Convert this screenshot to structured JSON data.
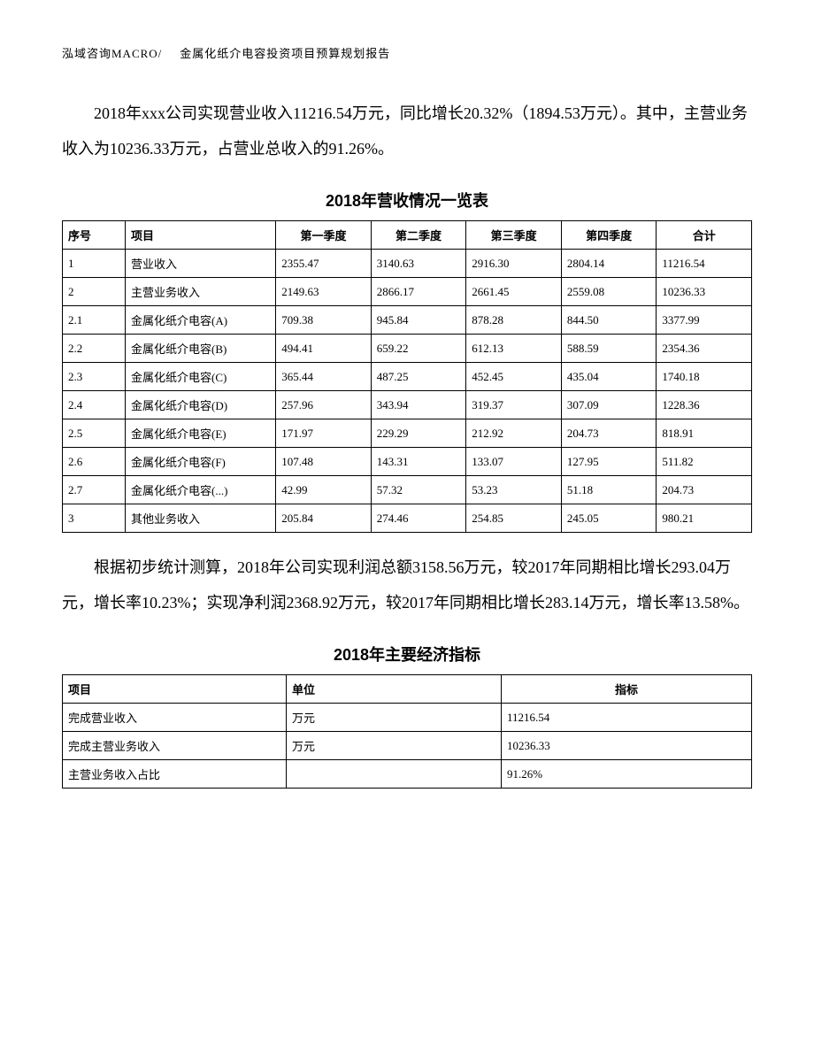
{
  "header": {
    "company": "泓域咨询MACRO/",
    "doc_title": "金属化纸介电容投资项目预算规划报告"
  },
  "paragraph1": "2018年xxx公司实现营业收入11216.54万元，同比增长20.32%（1894.53万元）。其中，主营业务收入为10236.33万元，占营业总收入的91.26%。",
  "table1": {
    "title": "2018年营收情况一览表",
    "columns": [
      "序号",
      "项目",
      "第一季度",
      "第二季度",
      "第三季度",
      "第四季度",
      "合计"
    ],
    "rows": [
      [
        "1",
        "营业收入",
        "2355.47",
        "3140.63",
        "2916.30",
        "2804.14",
        "11216.54"
      ],
      [
        "2",
        "主营业务收入",
        "2149.63",
        "2866.17",
        "2661.45",
        "2559.08",
        "10236.33"
      ],
      [
        "2.1",
        "金属化纸介电容(A)",
        "709.38",
        "945.84",
        "878.28",
        "844.50",
        "3377.99"
      ],
      [
        "2.2",
        "金属化纸介电容(B)",
        "494.41",
        "659.22",
        "612.13",
        "588.59",
        "2354.36"
      ],
      [
        "2.3",
        "金属化纸介电容(C)",
        "365.44",
        "487.25",
        "452.45",
        "435.04",
        "1740.18"
      ],
      [
        "2.4",
        "金属化纸介电容(D)",
        "257.96",
        "343.94",
        "319.37",
        "307.09",
        "1228.36"
      ],
      [
        "2.5",
        "金属化纸介电容(E)",
        "171.97",
        "229.29",
        "212.92",
        "204.73",
        "818.91"
      ],
      [
        "2.6",
        "金属化纸介电容(F)",
        "107.48",
        "143.31",
        "133.07",
        "127.95",
        "511.82"
      ],
      [
        "2.7",
        "金属化纸介电容(...)",
        "42.99",
        "57.32",
        "53.23",
        "51.18",
        "204.73"
      ],
      [
        "3",
        "其他业务收入",
        "205.84",
        "274.46",
        "254.85",
        "245.05",
        "980.21"
      ]
    ]
  },
  "paragraph2": "根据初步统计测算，2018年公司实现利润总额3158.56万元，较2017年同期相比增长293.04万元，增长率10.23%；实现净利润2368.92万元，较2017年同期相比增长283.14万元，增长率13.58%。",
  "table2": {
    "title": "2018年主要经济指标",
    "columns": [
      "项目",
      "单位",
      "指标"
    ],
    "rows": [
      [
        "完成营业收入",
        "万元",
        "11216.54"
      ],
      [
        "完成主营业务收入",
        "万元",
        "10236.33"
      ],
      [
        "主营业务收入占比",
        "",
        "91.26%"
      ]
    ]
  }
}
